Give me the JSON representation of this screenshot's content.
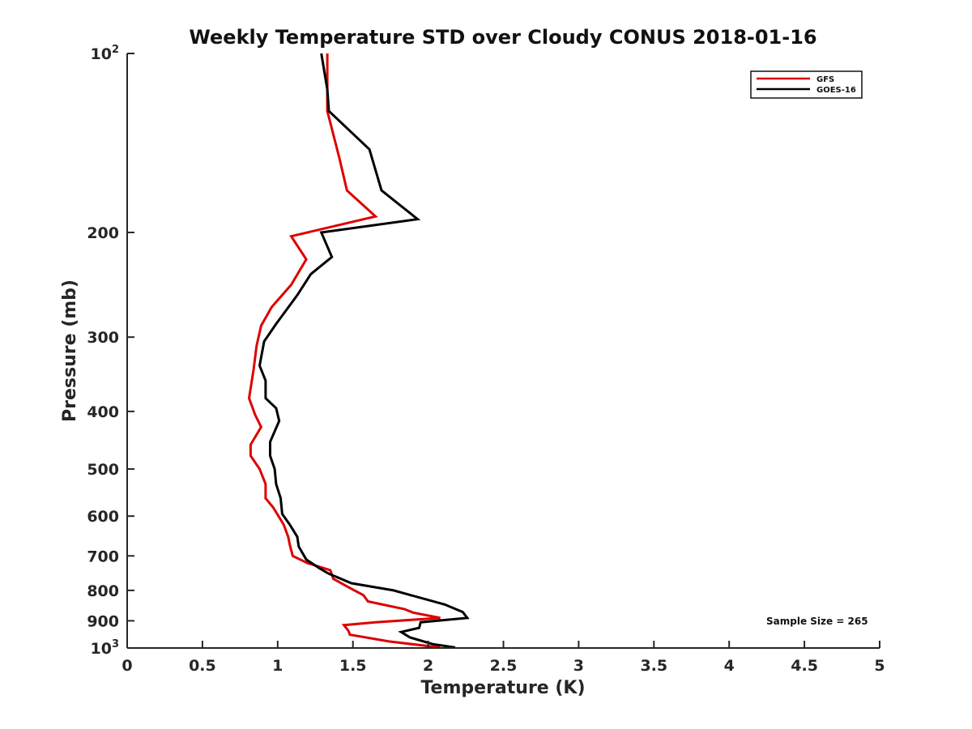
{
  "chart_data": {
    "type": "line",
    "title": "Weekly Temperature STD over Cloudy CONUS 2018-01-16",
    "xlabel": "Temperature (K)",
    "ylabel": "Pressure (mb)",
    "xlim": [
      0,
      5
    ],
    "ylim": [
      100,
      1000
    ],
    "y_scale": "log",
    "y_reversed": true,
    "x_ticks": [
      "0",
      "0.5",
      "1",
      "1.5",
      "2",
      "2.5",
      "3",
      "3.5",
      "4",
      "4.5",
      "5"
    ],
    "x_tick_values": [
      0,
      0.5,
      1,
      1.5,
      2,
      2.5,
      3,
      3.5,
      4,
      4.5,
      5
    ],
    "y_ticks": [
      {
        "value": 100,
        "base": "10",
        "exp": "2"
      },
      {
        "value": 200,
        "label": "200"
      },
      {
        "value": 300,
        "label": "300"
      },
      {
        "value": 400,
        "label": "400"
      },
      {
        "value": 500,
        "label": "500"
      },
      {
        "value": 600,
        "label": "600"
      },
      {
        "value": 700,
        "label": "700"
      },
      {
        "value": 800,
        "label": "800"
      },
      {
        "value": 900,
        "label": "900"
      },
      {
        "value": 1000,
        "base": "10",
        "exp": "3"
      }
    ],
    "grid": false,
    "legend": {
      "position": "top-right"
    },
    "annotation": "Sample Size = 265",
    "series": [
      {
        "name": "GFS",
        "color": "#dd0000",
        "points": [
          [
            1.33,
            100
          ],
          [
            1.33,
            125
          ],
          [
            1.41,
            150
          ],
          [
            1.46,
            170
          ],
          [
            1.65,
            188
          ],
          [
            1.09,
            203
          ],
          [
            1.19,
            222
          ],
          [
            1.09,
            245
          ],
          [
            0.96,
            267
          ],
          [
            0.89,
            287
          ],
          [
            0.86,
            310
          ],
          [
            0.84,
            340
          ],
          [
            0.81,
            380
          ],
          [
            0.85,
            405
          ],
          [
            0.89,
            425
          ],
          [
            0.82,
            455
          ],
          [
            0.82,
            475
          ],
          [
            0.88,
            500
          ],
          [
            0.92,
            530
          ],
          [
            0.92,
            560
          ],
          [
            0.97,
            580
          ],
          [
            1.04,
            620
          ],
          [
            1.07,
            650
          ],
          [
            1.08,
            670
          ],
          [
            1.1,
            700
          ],
          [
            1.2,
            720
          ],
          [
            1.35,
            740
          ],
          [
            1.37,
            765
          ],
          [
            1.47,
            790
          ],
          [
            1.57,
            815
          ],
          [
            1.6,
            835
          ],
          [
            1.84,
            860
          ],
          [
            1.9,
            872
          ],
          [
            2.08,
            890
          ],
          [
            1.65,
            905
          ],
          [
            1.44,
            915
          ],
          [
            1.47,
            935
          ],
          [
            1.48,
            950
          ],
          [
            1.74,
            975
          ],
          [
            2.08,
            998
          ]
        ]
      },
      {
        "name": "GOES-16",
        "color": "#000000",
        "points": [
          [
            1.29,
            100
          ],
          [
            1.33,
            115
          ],
          [
            1.34,
            125
          ],
          [
            1.61,
            145
          ],
          [
            1.69,
            170
          ],
          [
            1.93,
            190
          ],
          [
            1.29,
            200
          ],
          [
            1.36,
            220
          ],
          [
            1.22,
            235
          ],
          [
            1.13,
            255
          ],
          [
            0.99,
            285
          ],
          [
            0.91,
            305
          ],
          [
            0.88,
            335
          ],
          [
            0.92,
            355
          ],
          [
            0.92,
            380
          ],
          [
            0.99,
            395
          ],
          [
            1.01,
            415
          ],
          [
            0.95,
            450
          ],
          [
            0.95,
            475
          ],
          [
            0.98,
            500
          ],
          [
            0.99,
            530
          ],
          [
            1.02,
            560
          ],
          [
            1.03,
            595
          ],
          [
            1.08,
            620
          ],
          [
            1.13,
            650
          ],
          [
            1.14,
            675
          ],
          [
            1.19,
            710
          ],
          [
            1.28,
            735
          ],
          [
            1.34,
            750
          ],
          [
            1.49,
            778
          ],
          [
            1.77,
            800
          ],
          [
            2.11,
            845
          ],
          [
            2.23,
            870
          ],
          [
            2.26,
            890
          ],
          [
            1.95,
            905
          ],
          [
            1.94,
            925
          ],
          [
            1.82,
            940
          ],
          [
            1.88,
            960
          ],
          [
            2.03,
            985
          ],
          [
            2.18,
            998
          ]
        ]
      }
    ]
  }
}
